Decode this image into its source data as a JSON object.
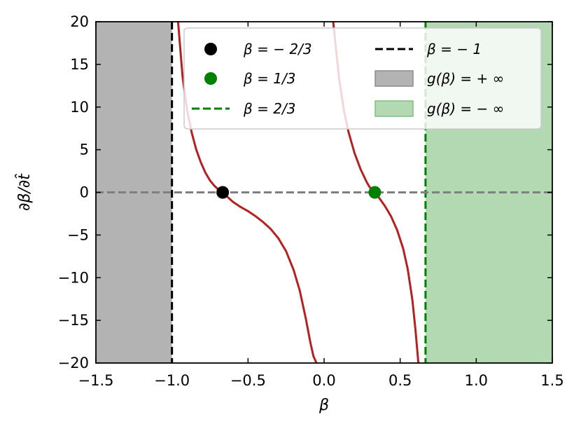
{
  "chart_data": {
    "type": "line",
    "title": "",
    "xlabel": "β",
    "ylabel": "∂β/∂t̂",
    "xlim": [
      -1.5,
      1.5
    ],
    "ylim": [
      -20,
      20
    ],
    "x_ticks": [
      -1.5,
      -1.0,
      -0.5,
      0.0,
      0.5,
      1.0,
      1.5
    ],
    "x_tick_labels": [
      "−1.5",
      "−1.0",
      "−0.5",
      "0.0",
      "0.5",
      "1.0",
      "1.5"
    ],
    "y_ticks": [
      -20,
      -15,
      -10,
      -5,
      0,
      5,
      10,
      15,
      20
    ],
    "y_tick_labels": [
      "−20",
      "−15",
      "−10",
      "−5",
      "0",
      "5",
      "10",
      "15",
      "20"
    ],
    "grid": false,
    "legend_position": "top-right",
    "curve": {
      "color": "#b22222",
      "branches": [
        {
          "x": [
            -0.96,
            -0.93,
            -0.9,
            -0.87,
            -0.84,
            -0.81,
            -0.78,
            -0.75,
            -0.72,
            -0.69,
            -0.6667,
            -0.64,
            -0.6,
            -0.55,
            -0.5,
            -0.45,
            -0.4,
            -0.35,
            -0.3,
            -0.25,
            -0.2,
            -0.16,
            -0.12,
            -0.09,
            -0.07,
            -0.05
          ],
          "y": [
            20,
            13.5,
            9.6,
            7.0,
            5.0,
            3.5,
            2.3,
            1.4,
            0.75,
            0.25,
            0,
            -0.45,
            -1.1,
            -1.7,
            -2.2,
            -2.8,
            -3.5,
            -4.3,
            -5.4,
            -6.9,
            -9.1,
            -11.5,
            -14.8,
            -17.6,
            -19.2,
            -20
          ]
        },
        {
          "x": [
            0.06,
            0.08,
            0.1,
            0.13,
            0.16,
            0.2,
            0.24,
            0.28,
            0.3,
            0.3333,
            0.36,
            0.4,
            0.44,
            0.48,
            0.52,
            0.55,
            0.58,
            0.6,
            0.62
          ],
          "y": [
            20,
            16.5,
            13.2,
            9.6,
            7.1,
            4.6,
            2.7,
            1.2,
            0.6,
            0,
            -0.6,
            -1.6,
            -2.8,
            -4.4,
            -6.6,
            -9.0,
            -12.6,
            -16.0,
            -20
          ]
        }
      ]
    },
    "zero_line": {
      "y": 0,
      "color": "#808080"
    },
    "fixed_points": [
      {
        "label": "β = − 2/3",
        "x": -0.6667,
        "y": 0,
        "color": "#000000"
      },
      {
        "label": "β = 1/3",
        "x": 0.3333,
        "y": 0,
        "color": "#008000"
      }
    ],
    "vertical_lines": [
      {
        "label": "β = 2/3",
        "x": 0.6667,
        "color": "#008000"
      },
      {
        "label": "β = − 1",
        "x": -1.0,
        "color": "#000000"
      }
    ],
    "regions": [
      {
        "label": "g(β) = + ∞",
        "x0": -1.5,
        "x1": -1.0,
        "color": "#b3b3b3"
      },
      {
        "label": "g(β) = − ∞",
        "x0": 0.6667,
        "x1": 1.5,
        "color": "#b3d9b3"
      }
    ],
    "legend": [
      {
        "marker": "dot",
        "color": "#000000",
        "label": "β = − 2/3"
      },
      {
        "marker": "dash",
        "color": "#000000",
        "label": "β = − 1"
      },
      {
        "marker": "dot",
        "color": "#008000",
        "label": "β = 1/3"
      },
      {
        "marker": "patch",
        "color": "#b3b3b3",
        "edge": "#8c8c8c",
        "label": "g(β) = + ∞"
      },
      {
        "marker": "dash",
        "color": "#008000",
        "label": "β = 2/3"
      },
      {
        "marker": "patch",
        "color": "#b3d9b3",
        "edge": "#7fbf7f",
        "label": "g(β) = − ∞"
      }
    ]
  }
}
